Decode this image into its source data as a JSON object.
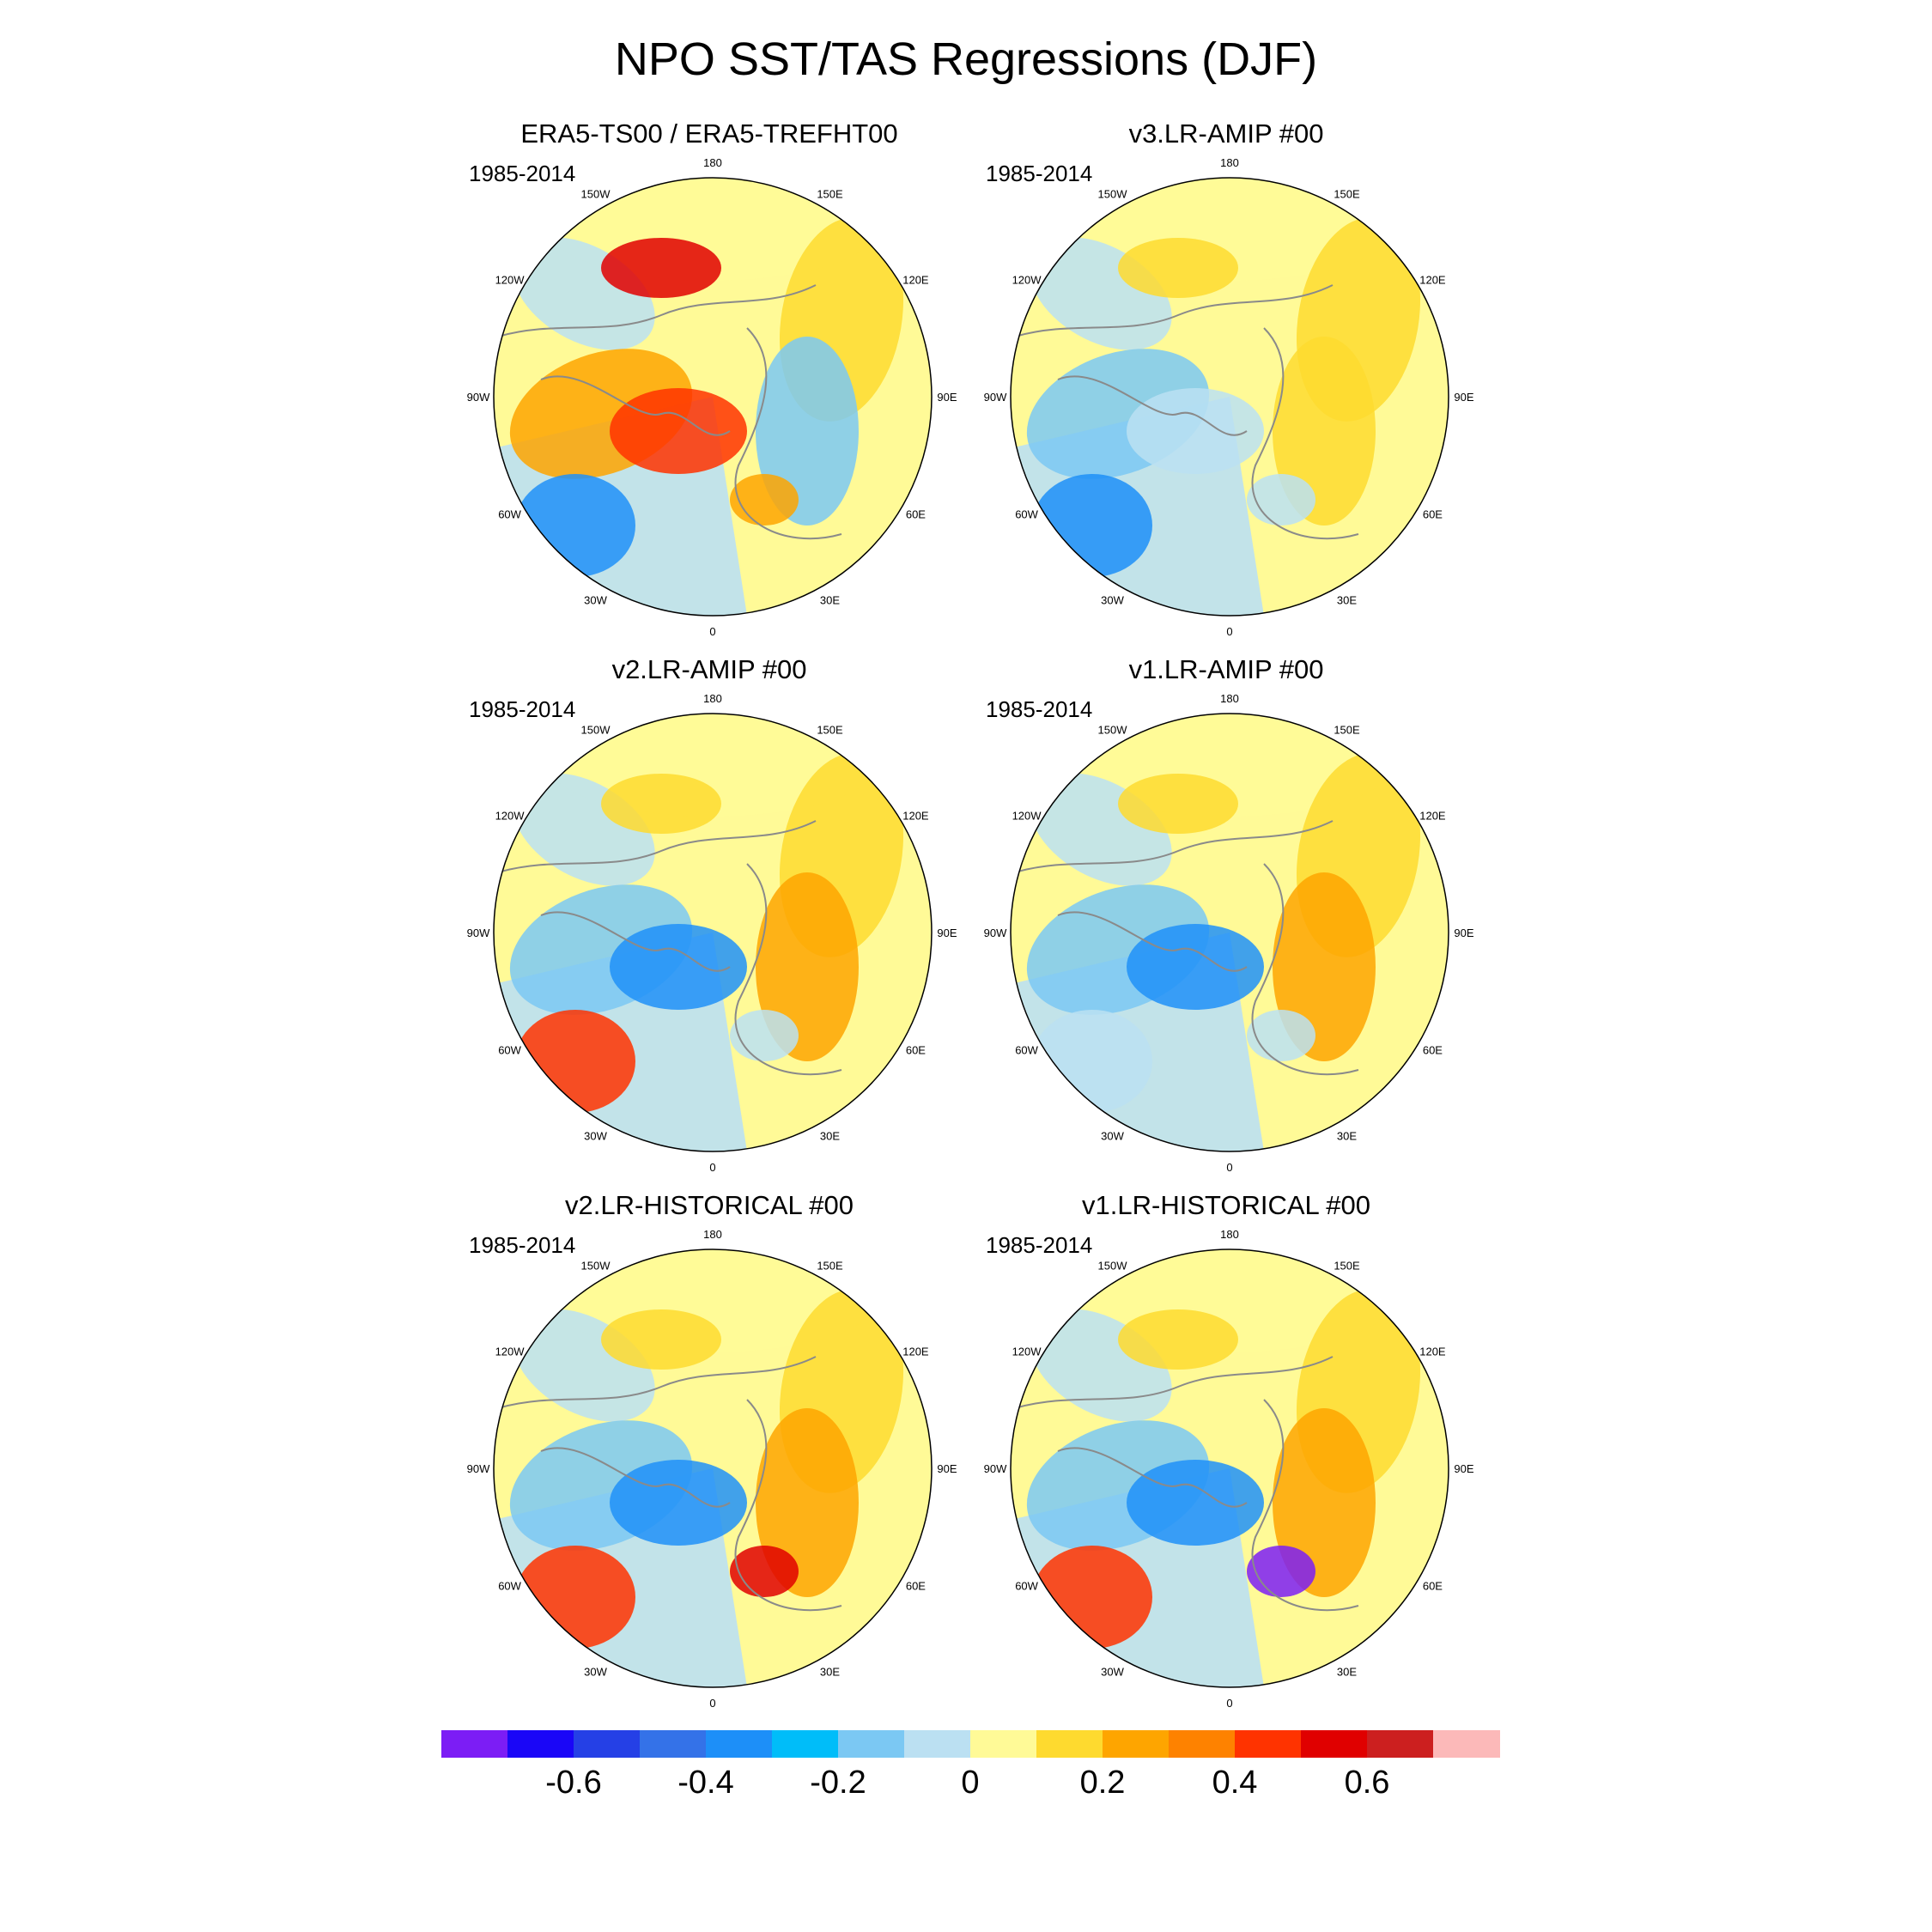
{
  "figure_title": "NPO SST/TAS Regressions (DJF)",
  "period": "1985-2014",
  "panels": [
    {
      "title": "ERA5-TS00 / ERA5-TREFHT00",
      "pattern": [
        "#fffa97",
        "#bbe0f2",
        "#feda2f",
        "#fea500",
        "#ff3300",
        "#7bc8f3",
        "#2090f8",
        "#fea500",
        "#e00000"
      ]
    },
    {
      "title": "v3.LR-AMIP  #00",
      "pattern": [
        "#fffa97",
        "#bbe0f2",
        "#feda2f",
        "#7bc8f3",
        "#bbe0f2",
        "#feda2f",
        "#1d8ff8",
        "#bbe0f2",
        "#feda2f"
      ]
    },
    {
      "title": "v2.LR-AMIP  #00",
      "pattern": [
        "#fffa97",
        "#bbe0f2",
        "#feda2f",
        "#7bc8f3",
        "#2090f8",
        "#fea500",
        "#ff3300",
        "#bbe0f2",
        "#feda2f"
      ]
    },
    {
      "title": "v1.LR-AMIP  #00",
      "pattern": [
        "#fffa97",
        "#bbe0f2",
        "#feda2f",
        "#7bc8f3",
        "#2090f8",
        "#fea500",
        "#bbe0f2",
        "#bbe0f2",
        "#feda2f"
      ]
    },
    {
      "title": "v2.LR-HISTORICAL  #00",
      "pattern": [
        "#fffa97",
        "#bbe0f2",
        "#feda2f",
        "#7bc8f3",
        "#2090f8",
        "#fea500",
        "#ff3300",
        "#e00000",
        "#feda2f"
      ]
    },
    {
      "title": "v1.LR-HISTORICAL  #00",
      "pattern": [
        "#fffa97",
        "#bbe0f2",
        "#feda2f",
        "#7bc8f3",
        "#2090f8",
        "#fea500",
        "#ff3300",
        "#7c1df5",
        "#feda2f"
      ]
    }
  ],
  "longitude_labels": [
    "180",
    "150E",
    "120E",
    "90E",
    "60E",
    "30E",
    "0",
    "30W",
    "60W",
    "90W",
    "120W",
    "150W"
  ],
  "colorbar": {
    "colors": [
      "#7c1df5",
      "#1a06f7",
      "#2540e6",
      "#3472e8",
      "#1d8ff8",
      "#00bdf9",
      "#7bc8f3",
      "#bbe0f2",
      "#fffa97",
      "#feda2f",
      "#fea500",
      "#fe8200",
      "#ff3300",
      "#e00000",
      "#cc1f1f",
      "#fcb9b9"
    ],
    "tick_labels": [
      "-0.6",
      "-0.4",
      "-0.2",
      "0",
      "0.2",
      "0.4",
      "0.6"
    ]
  }
}
